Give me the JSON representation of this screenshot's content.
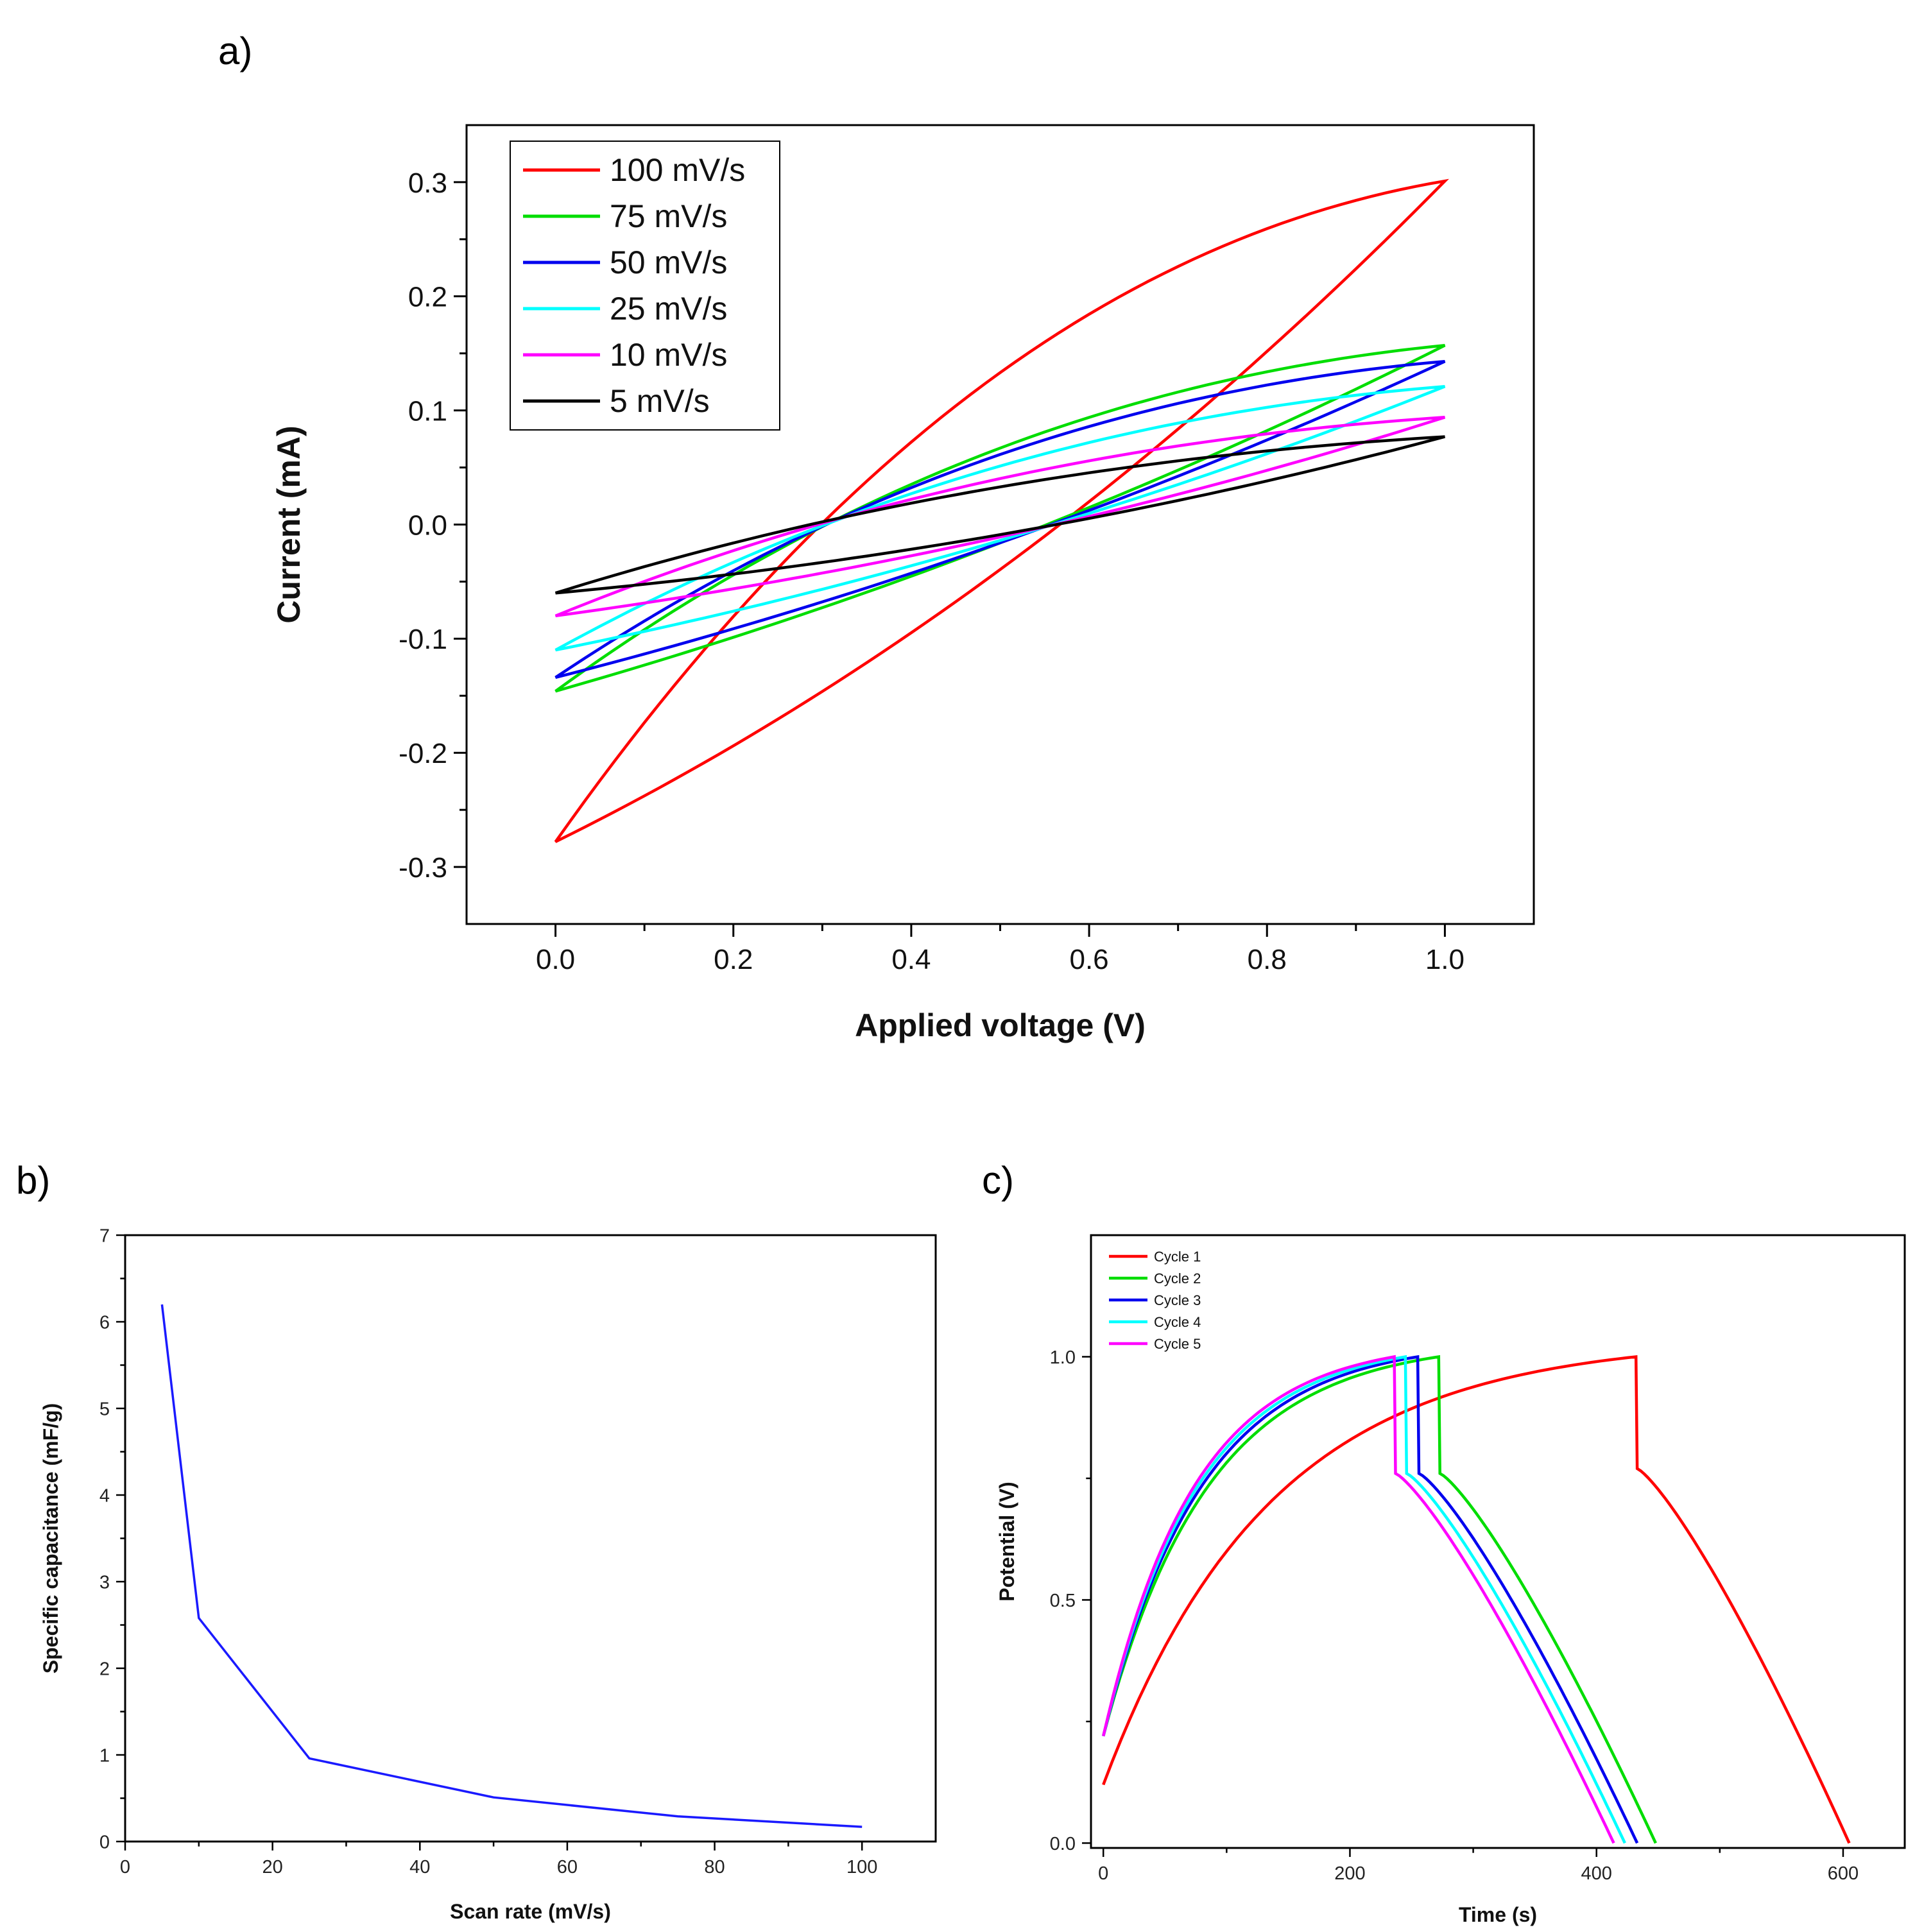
{
  "panels": {
    "a_label": "a)",
    "b_label": "b)",
    "c_label": "c)"
  },
  "chart_data": [
    {
      "id": "a",
      "type": "line",
      "title": "",
      "xlabel": "Applied voltage (V)",
      "ylabel": "Current (mA)",
      "xlim": [
        -0.1,
        1.1
      ],
      "ylim": [
        -0.35,
        0.35
      ],
      "xticks": [
        0.0,
        0.2,
        0.4,
        0.6,
        0.8,
        1.0
      ],
      "xtick_labels": [
        "0.0",
        "0.2",
        "0.4",
        "0.6",
        "0.8",
        "1.0"
      ],
      "yticks": [
        -0.3,
        -0.2,
        -0.1,
        0.0,
        0.1,
        0.2,
        0.3
      ],
      "ytick_labels": [
        "-0.3",
        "-0.2",
        "-0.1",
        "0.0",
        "0.1",
        "0.2",
        "0.3"
      ],
      "legend_position": "top-left",
      "series": [
        {
          "name": "100 mV/s",
          "color": "#ff0000",
          "i_start": -0.278,
          "i_end": 0.301,
          "i_forward_mid": 0.143,
          "i_reverse_mid": -0.037
        },
        {
          "name": "75 mV/s",
          "color": "#00dd00",
          "i_start": -0.146,
          "i_end": 0.157,
          "i_forward_mid": 0.072,
          "i_reverse_mid": -0.015
        },
        {
          "name": "50 mV/s",
          "color": "#0000ee",
          "i_start": -0.134,
          "i_end": 0.143,
          "i_forward_mid": 0.066,
          "i_reverse_mid": -0.015
        },
        {
          "name": "25 mV/s",
          "color": "#00ffff",
          "i_start": -0.11,
          "i_end": 0.121,
          "i_forward_mid": 0.055,
          "i_reverse_mid": -0.013
        },
        {
          "name": "10 mV/s",
          "color": "#ff00ff",
          "i_start": -0.08,
          "i_end": 0.094,
          "i_forward_mid": 0.043,
          "i_reverse_mid": -0.01
        },
        {
          "name": "5 mV/s",
          "color": "#000000",
          "i_start": -0.06,
          "i_end": 0.077,
          "i_forward_mid": 0.035,
          "i_reverse_mid": -0.008
        }
      ]
    },
    {
      "id": "b",
      "type": "line",
      "title": "",
      "xlabel": "Scan rate (mV/s)",
      "ylabel": "Specific capacitance (mF/g)",
      "xlim": [
        0,
        110
      ],
      "ylim": [
        0,
        7
      ],
      "xticks": [
        0,
        20,
        40,
        60,
        80,
        100
      ],
      "xtick_labels": [
        "0",
        "20",
        "40",
        "60",
        "80",
        "100"
      ],
      "yticks": [
        0,
        1,
        2,
        3,
        4,
        5,
        6,
        7
      ],
      "ytick_labels": [
        "0",
        "1",
        "2",
        "3",
        "4",
        "5",
        "6",
        "7"
      ],
      "series": [
        {
          "name": "Specific capacitance",
          "color": "#1a1aff",
          "x": [
            5,
            10,
            25,
            50,
            75,
            100
          ],
          "y": [
            6.2,
            2.58,
            0.96,
            0.51,
            0.29,
            0.17
          ]
        }
      ]
    },
    {
      "id": "c",
      "type": "line",
      "title": "",
      "xlabel": "Time (s)",
      "ylabel": "Potential (V)",
      "xlim": [
        -10,
        650
      ],
      "ylim": [
        -0.01,
        1.25
      ],
      "xticks": [
        0,
        200,
        400,
        600
      ],
      "xtick_labels": [
        "0",
        "200",
        "400",
        "600"
      ],
      "yticks": [
        0.0,
        0.5,
        1.0
      ],
      "ytick_labels": [
        "0.0",
        "0.5",
        "1.0"
      ],
      "legend_position": "top-left",
      "series": [
        {
          "name": "Cycle 1",
          "color": "#ff0000",
          "v_start": 0.12,
          "t_peak": 432,
          "v_peak": 1.0,
          "v_after_drop": 0.77,
          "t_end": 605
        },
        {
          "name": "Cycle 2",
          "color": "#00dd00",
          "v_start": 0.22,
          "t_peak": 272,
          "v_peak": 1.0,
          "v_after_drop": 0.76,
          "t_end": 448
        },
        {
          "name": "Cycle 3",
          "color": "#0000ee",
          "v_start": 0.22,
          "t_peak": 255,
          "v_peak": 1.0,
          "v_after_drop": 0.76,
          "t_end": 433
        },
        {
          "name": "Cycle 4",
          "color": "#00ffff",
          "v_start": 0.22,
          "t_peak": 245,
          "v_peak": 1.0,
          "v_after_drop": 0.76,
          "t_end": 423
        },
        {
          "name": "Cycle 5",
          "color": "#ff00ff",
          "v_start": 0.22,
          "t_peak": 236,
          "v_peak": 1.0,
          "v_after_drop": 0.76,
          "t_end": 414
        }
      ]
    }
  ]
}
